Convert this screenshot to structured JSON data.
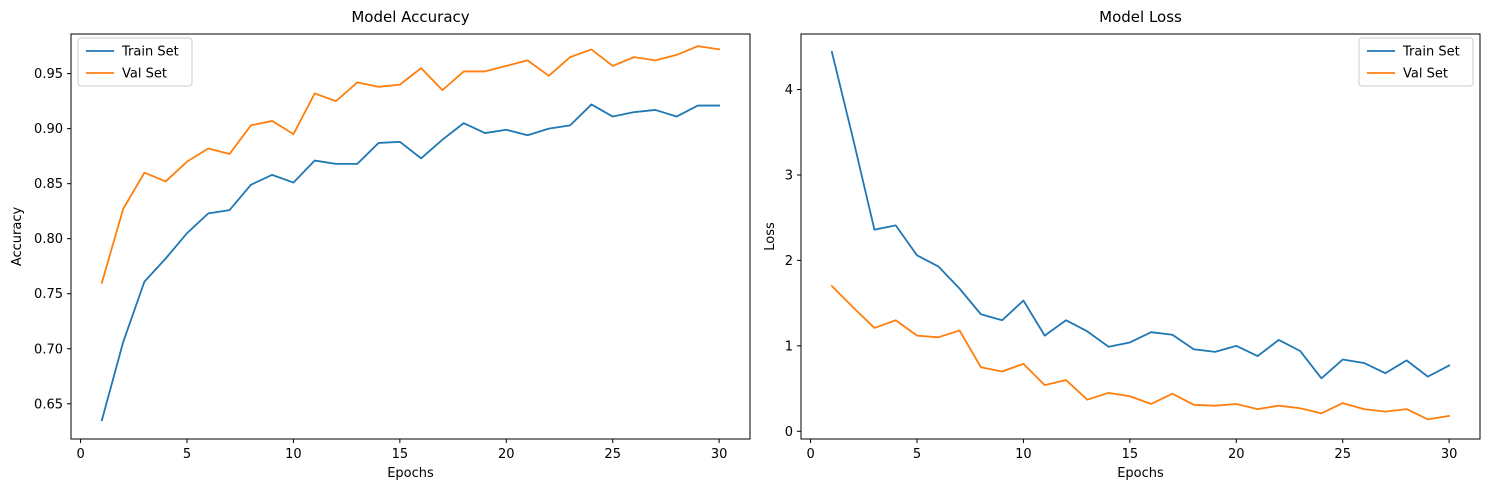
{
  "chart_data": [
    {
      "type": "line",
      "title": "Model Accuracy",
      "xlabel": "Epochs",
      "ylabel": "Accuracy",
      "xlim": [
        -0.45,
        31.45
      ],
      "ylim": [
        0.618,
        0.986
      ],
      "xticks": [
        0,
        5,
        10,
        15,
        20,
        25,
        30
      ],
      "yticks": [
        0.65,
        0.7,
        0.75,
        0.8,
        0.85,
        0.9,
        0.95
      ],
      "ytick_labels": [
        "0.65",
        "0.70",
        "0.75",
        "0.80",
        "0.85",
        "0.90",
        "0.95"
      ],
      "grid": false,
      "legend_position": "upper-left",
      "x": [
        1,
        2,
        3,
        4,
        5,
        6,
        7,
        8,
        9,
        10,
        11,
        12,
        13,
        14,
        15,
        16,
        17,
        18,
        19,
        20,
        21,
        22,
        23,
        24,
        25,
        26,
        27,
        28,
        29,
        30
      ],
      "series": [
        {
          "name": "Train Set",
          "color": "#1f77b4",
          "values": [
            0.635,
            0.706,
            0.761,
            0.782,
            0.805,
            0.823,
            0.826,
            0.849,
            0.858,
            0.851,
            0.871,
            0.868,
            0.868,
            0.887,
            0.888,
            0.873,
            0.89,
            0.905,
            0.896,
            0.899,
            0.894,
            0.9,
            0.903,
            0.922,
            0.911,
            0.915,
            0.917,
            0.911,
            0.921,
            0.921
          ]
        },
        {
          "name": "Val Set",
          "color": "#ff7f0e",
          "values": [
            0.76,
            0.827,
            0.86,
            0.852,
            0.87,
            0.882,
            0.877,
            0.903,
            0.907,
            0.895,
            0.932,
            0.925,
            0.942,
            0.938,
            0.94,
            0.955,
            0.935,
            0.952,
            0.952,
            0.957,
            0.962,
            0.948,
            0.965,
            0.972,
            0.957,
            0.965,
            0.962,
            0.967,
            0.975,
            0.972
          ]
        }
      ]
    },
    {
      "type": "line",
      "title": "Model Loss",
      "xlabel": "Epochs",
      "ylabel": "Loss",
      "xlim": [
        -0.45,
        31.45
      ],
      "ylim": [
        -0.09,
        4.65
      ],
      "xticks": [
        0,
        5,
        10,
        15,
        20,
        25,
        30
      ],
      "yticks": [
        0,
        1,
        2,
        3,
        4
      ],
      "ytick_labels": [
        "0",
        "1",
        "2",
        "3",
        "4"
      ],
      "grid": false,
      "legend_position": "upper-right",
      "x": [
        1,
        2,
        3,
        4,
        5,
        6,
        7,
        8,
        9,
        10,
        11,
        12,
        13,
        14,
        15,
        16,
        17,
        18,
        19,
        20,
        21,
        22,
        23,
        24,
        25,
        26,
        27,
        28,
        29,
        30
      ],
      "series": [
        {
          "name": "Train Set",
          "color": "#1f77b4",
          "values": [
            4.44,
            3.42,
            2.36,
            2.41,
            2.06,
            1.93,
            1.67,
            1.37,
            1.3,
            1.53,
            1.12,
            1.3,
            1.17,
            0.99,
            1.04,
            1.16,
            1.13,
            0.96,
            0.93,
            1.0,
            0.88,
            1.07,
            0.94,
            0.62,
            0.84,
            0.8,
            0.68,
            0.83,
            0.64,
            0.77
          ]
        },
        {
          "name": "Val Set",
          "color": "#ff7f0e",
          "values": [
            1.7,
            1.45,
            1.21,
            1.3,
            1.12,
            1.1,
            1.18,
            0.75,
            0.7,
            0.79,
            0.54,
            0.6,
            0.37,
            0.45,
            0.41,
            0.32,
            0.44,
            0.31,
            0.3,
            0.32,
            0.26,
            0.3,
            0.27,
            0.21,
            0.33,
            0.26,
            0.23,
            0.26,
            0.14,
            0.18
          ]
        }
      ]
    }
  ]
}
